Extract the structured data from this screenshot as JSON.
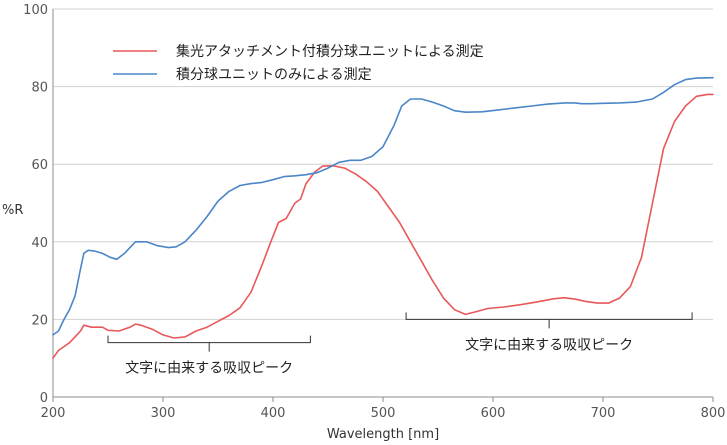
{
  "chart_data": {
    "type": "line",
    "xlabel": "Wavelength [nm]",
    "ylabel": "%R",
    "xlim": [
      200,
      800
    ],
    "ylim": [
      0,
      100
    ],
    "x_ticks": [
      "200",
      "300",
      "400",
      "500",
      "600",
      "700",
      "800"
    ],
    "y_ticks": [
      "0",
      "20",
      "40",
      "60",
      "80",
      "100"
    ],
    "grid": "horizontal",
    "legend": "top-left",
    "series": [
      {
        "name": "集光アタッチメント付積分球ユニットによる測定",
        "color": "#e8585a",
        "points": [
          [
            200,
            10
          ],
          [
            205,
            12
          ],
          [
            210,
            13
          ],
          [
            215,
            14
          ],
          [
            220,
            15.5
          ],
          [
            225,
            17
          ],
          [
            228,
            18.5
          ],
          [
            235,
            18
          ],
          [
            245,
            18
          ],
          [
            250,
            17.2
          ],
          [
            260,
            17
          ],
          [
            270,
            18
          ],
          [
            275,
            18.8
          ],
          [
            280,
            18.5
          ],
          [
            290,
            17.5
          ],
          [
            300,
            16
          ],
          [
            310,
            15.2
          ],
          [
            320,
            15.5
          ],
          [
            330,
            17
          ],
          [
            340,
            18
          ],
          [
            350,
            19.5
          ],
          [
            360,
            21
          ],
          [
            370,
            23
          ],
          [
            380,
            27
          ],
          [
            390,
            34
          ],
          [
            398,
            40
          ],
          [
            405,
            45
          ],
          [
            412,
            46
          ],
          [
            420,
            50
          ],
          [
            425,
            51
          ],
          [
            430,
            55
          ],
          [
            438,
            58
          ],
          [
            445,
            59.5
          ],
          [
            455,
            59.6
          ],
          [
            465,
            59
          ],
          [
            475,
            57.5
          ],
          [
            485,
            55.5
          ],
          [
            495,
            53
          ],
          [
            505,
            49
          ],
          [
            515,
            45
          ],
          [
            525,
            40
          ],
          [
            535,
            35
          ],
          [
            545,
            30
          ],
          [
            555,
            25.5
          ],
          [
            565,
            22.5
          ],
          [
            575,
            21.3
          ],
          [
            585,
            22
          ],
          [
            595,
            22.8
          ],
          [
            610,
            23.2
          ],
          [
            625,
            23.8
          ],
          [
            640,
            24.5
          ],
          [
            655,
            25.3
          ],
          [
            665,
            25.6
          ],
          [
            675,
            25.2
          ],
          [
            685,
            24.6
          ],
          [
            695,
            24.2
          ],
          [
            705,
            24.2
          ],
          [
            715,
            25.5
          ],
          [
            725,
            28.5
          ],
          [
            735,
            36
          ],
          [
            745,
            50
          ],
          [
            755,
            64
          ],
          [
            765,
            71
          ],
          [
            775,
            75
          ],
          [
            785,
            77.5
          ],
          [
            795,
            78
          ],
          [
            800,
            78
          ]
        ]
      },
      {
        "name": "積分球ユニットのみによる測定",
        "color": "#4a86c8",
        "points": [
          [
            200,
            16
          ],
          [
            205,
            17
          ],
          [
            210,
            20
          ],
          [
            215,
            22.5
          ],
          [
            220,
            26
          ],
          [
            225,
            33
          ],
          [
            228,
            37
          ],
          [
            232,
            37.8
          ],
          [
            238,
            37.6
          ],
          [
            245,
            37
          ],
          [
            252,
            36
          ],
          [
            258,
            35.5
          ],
          [
            265,
            37
          ],
          [
            270,
            38.5
          ],
          [
            275,
            40
          ],
          [
            285,
            40
          ],
          [
            295,
            39
          ],
          [
            305,
            38.5
          ],
          [
            312,
            38.7
          ],
          [
            320,
            40
          ],
          [
            330,
            43
          ],
          [
            340,
            46.5
          ],
          [
            350,
            50.5
          ],
          [
            360,
            53
          ],
          [
            370,
            54.5
          ],
          [
            380,
            55
          ],
          [
            390,
            55.3
          ],
          [
            400,
            56
          ],
          [
            410,
            56.8
          ],
          [
            420,
            57
          ],
          [
            430,
            57.3
          ],
          [
            440,
            57.8
          ],
          [
            450,
            59
          ],
          [
            460,
            60.5
          ],
          [
            470,
            61
          ],
          [
            480,
            61
          ],
          [
            490,
            62
          ],
          [
            500,
            64.5
          ],
          [
            510,
            70
          ],
          [
            517,
            75
          ],
          [
            525,
            76.8
          ],
          [
            535,
            76.8
          ],
          [
            545,
            76
          ],
          [
            555,
            75
          ],
          [
            565,
            73.8
          ],
          [
            575,
            73.4
          ],
          [
            590,
            73.5
          ],
          [
            605,
            74
          ],
          [
            620,
            74.5
          ],
          [
            635,
            75
          ],
          [
            650,
            75.5
          ],
          [
            665,
            75.8
          ],
          [
            675,
            75.8
          ],
          [
            680,
            75.6
          ],
          [
            690,
            75.6
          ],
          [
            700,
            75.7
          ],
          [
            715,
            75.8
          ],
          [
            730,
            76
          ],
          [
            745,
            76.8
          ],
          [
            755,
            78.5
          ],
          [
            765,
            80.5
          ],
          [
            775,
            81.8
          ],
          [
            785,
            82.2
          ],
          [
            800,
            82.3
          ]
        ]
      }
    ],
    "annotations": [
      {
        "text": "文字に由来する吸収ピーク",
        "x_range": [
          250,
          434
        ],
        "y": 14
      },
      {
        "text": "文字に由来する吸収ピーク",
        "x_range": [
          521,
          781
        ],
        "y": 20
      }
    ]
  }
}
